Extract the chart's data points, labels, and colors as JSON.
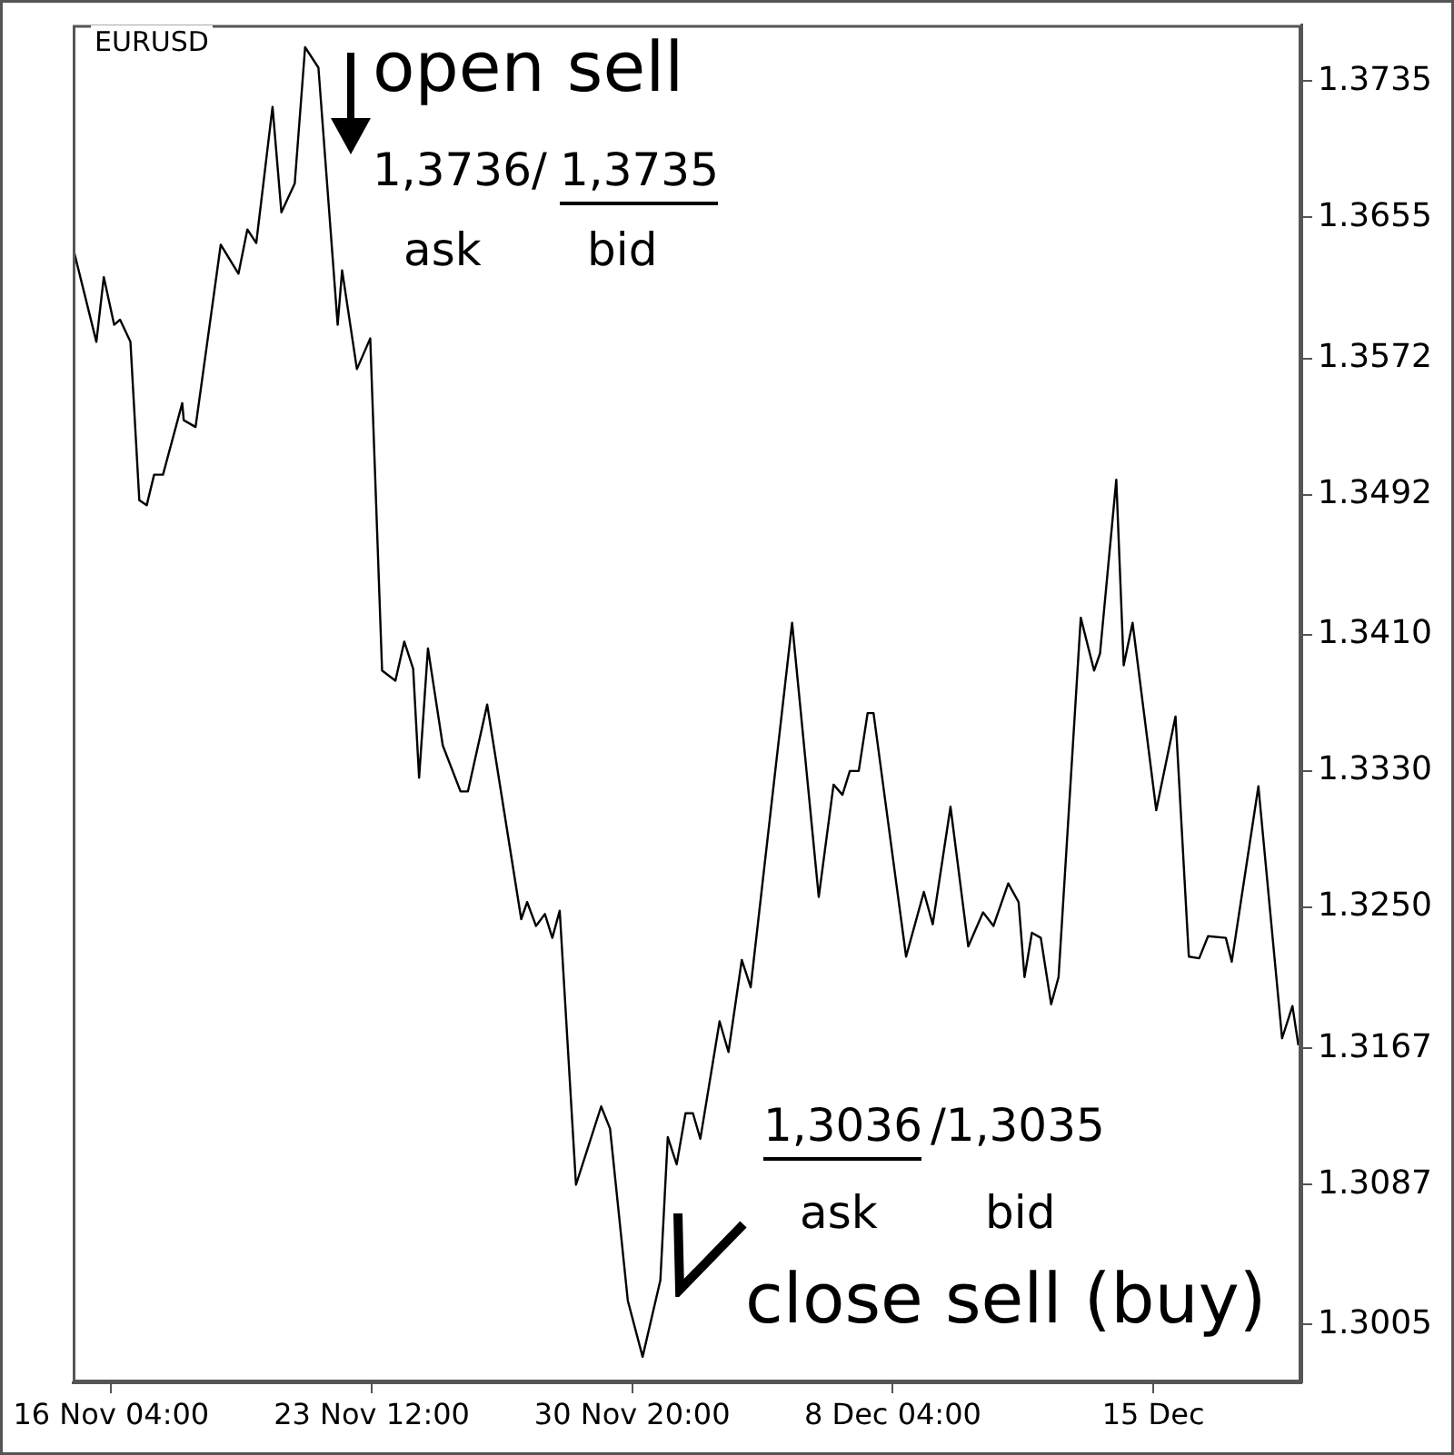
{
  "chart_data": {
    "type": "line",
    "title": "EURUSD",
    "grid": false,
    "annotations": [
      "open sell",
      "1,3736/",
      "1,3735",
      "ask",
      "bid",
      "1,3036",
      "/1,3035",
      "ask",
      "bid",
      "close sell (buy)"
    ],
    "xlim": [
      "--11-15T02:00",
      "--12-19T16:00"
    ],
    "xticks": [
      {
        "value": "--11-16T04:00",
        "label": "16 Nov 04:00"
      },
      {
        "value": "--11-23T12:00",
        "label": "23 Nov 12:00"
      },
      {
        "value": "--11-30T20:00",
        "label": "30 Nov 20:00"
      },
      {
        "value": "--12-08T04:00",
        "label": "8 Dec 04:00"
      },
      {
        "value": "--12-15T12:00",
        "label": "15 Dec"
      }
    ],
    "ylim": [
      1.2971,
      1.3768
    ],
    "yticks": [
      1.3005,
      1.3087,
      1.3167,
      {
        "value": 1.325,
        "label": "1.3250"
      },
      {
        "value": 1.333,
        "label": "1.3330"
      },
      {
        "value": 1.341,
        "label": "1.3410"
      },
      1.3492,
      1.3572,
      1.3655,
      1.3735
    ],
    "series": [
      {
        "color": "#000000",
        "x": [
          "--11-15T02:00",
          "--11-15T18:00",
          "--11-15T23:00",
          "--11-16T06:00",
          "--11-16T10:00",
          "--11-16T17:00",
          "--11-16T23:00",
          "--11-17T04:00",
          "--11-17T09:00",
          "--11-17T15:00",
          "--11-18T04:00",
          "--11-18T05:00",
          "--11-18T13:00",
          "--11-19T06:00",
          "--11-19T18:00",
          "--11-20T00:00",
          "--11-20T06:00",
          "--11-20T17:00",
          "--11-20T23:00",
          "--11-21T08:00",
          "--11-21T15:00",
          "--11-22T00:00",
          "--11-22T13:00",
          "--11-22T16:00",
          "--11-23T02:00",
          "--11-23T11:00",
          "--11-23T19:00",
          "--11-24T04:00",
          "--11-24T10:00",
          "--11-24T16:00",
          "--11-24T20:00",
          "--11-25T02:00",
          "--11-25T12:00",
          "--11-26T00:00",
          "--11-26T05:00",
          "--11-26T18:00",
          "--11-27T17:00",
          "--11-27T21:00",
          "--11-28T03:00",
          "--11-28T09:00",
          "--11-28T14:00",
          "--11-28T19:00",
          "--11-29T06:00",
          "--11-29T23:00",
          "--11-30T05:00",
          "--11-30T17:00",
          "--12-01T03:00",
          "--12-01T15:00",
          "--12-01T20:00",
          "--12-02T02:00",
          "--12-02T08:00",
          "--12-02T13:00",
          "--12-02T18:00",
          "--12-03T07:00",
          "--12-03T13:00",
          "--12-03T22:00",
          "--12-04T04:00",
          "--12-05T08:00",
          "--12-06T02:00",
          "--12-06T12:00",
          "--12-06T18:00",
          "--12-06T23:00",
          "--12-07T05:00",
          "--12-07T11:00",
          "--12-07T15:00",
          "--12-08T13:00",
          "--12-09T01:00",
          "--12-09T07:00",
          "--12-09T19:00",
          "--12-10T07:00",
          "--12-10T17:00",
          "--12-11T00:00",
          "--12-11T10:00",
          "--12-11T17:00",
          "--12-11T21:00",
          "--12-12T02:00",
          "--12-12T08:00",
          "--12-12T15:00",
          "--12-12T20:00",
          "--12-13T11:00",
          "--12-13T20:00",
          "--12-14T00:00",
          "--12-14T11:00",
          "--12-14T16:00",
          "--12-14T22:00",
          "--12-15T14:00",
          "--12-16T03:00",
          "--12-16T12:00",
          "--12-16T19:00",
          "--12-17T01:00",
          "--12-17T13:00",
          "--12-17T17:00",
          "--12-18T11:00",
          "--12-19T03:00",
          "--12-19T10:00",
          "--12-19T14:00"
        ],
        "values": [
          1.3638,
          1.3582,
          1.362,
          1.3592,
          1.3595,
          1.3582,
          1.3489,
          1.3486,
          1.3504,
          1.3504,
          1.3546,
          1.3536,
          1.3532,
          1.3639,
          1.3622,
          1.3648,
          1.364,
          1.372,
          1.3658,
          1.3675,
          1.3755,
          1.3743,
          1.3592,
          1.3624,
          1.3566,
          1.3584,
          1.3389,
          1.3383,
          1.3406,
          1.339,
          1.3326,
          1.3402,
          1.3345,
          1.3318,
          1.3318,
          1.3369,
          1.3243,
          1.3253,
          1.3239,
          1.3246,
          1.3232,
          1.3248,
          1.3087,
          1.3133,
          1.312,
          1.3019,
          1.2986,
          1.3031,
          1.3115,
          1.3099,
          1.3129,
          1.3129,
          1.3114,
          1.3183,
          1.3165,
          1.3219,
          1.3203,
          1.3417,
          1.3256,
          1.3322,
          1.3316,
          1.333,
          1.333,
          1.3364,
          1.3364,
          1.3221,
          1.3259,
          1.324,
          1.3309,
          1.3227,
          1.3247,
          1.3239,
          1.3264,
          1.3253,
          1.3209,
          1.3235,
          1.3232,
          1.3193,
          1.3209,
          1.342,
          1.3389,
          1.3399,
          1.3501,
          1.3392,
          1.3417,
          1.3307,
          1.3362,
          1.3221,
          1.322,
          1.3233,
          1.3232,
          1.3218,
          1.3321,
          1.3173,
          1.3192,
          1.3169
        ]
      }
    ]
  }
}
